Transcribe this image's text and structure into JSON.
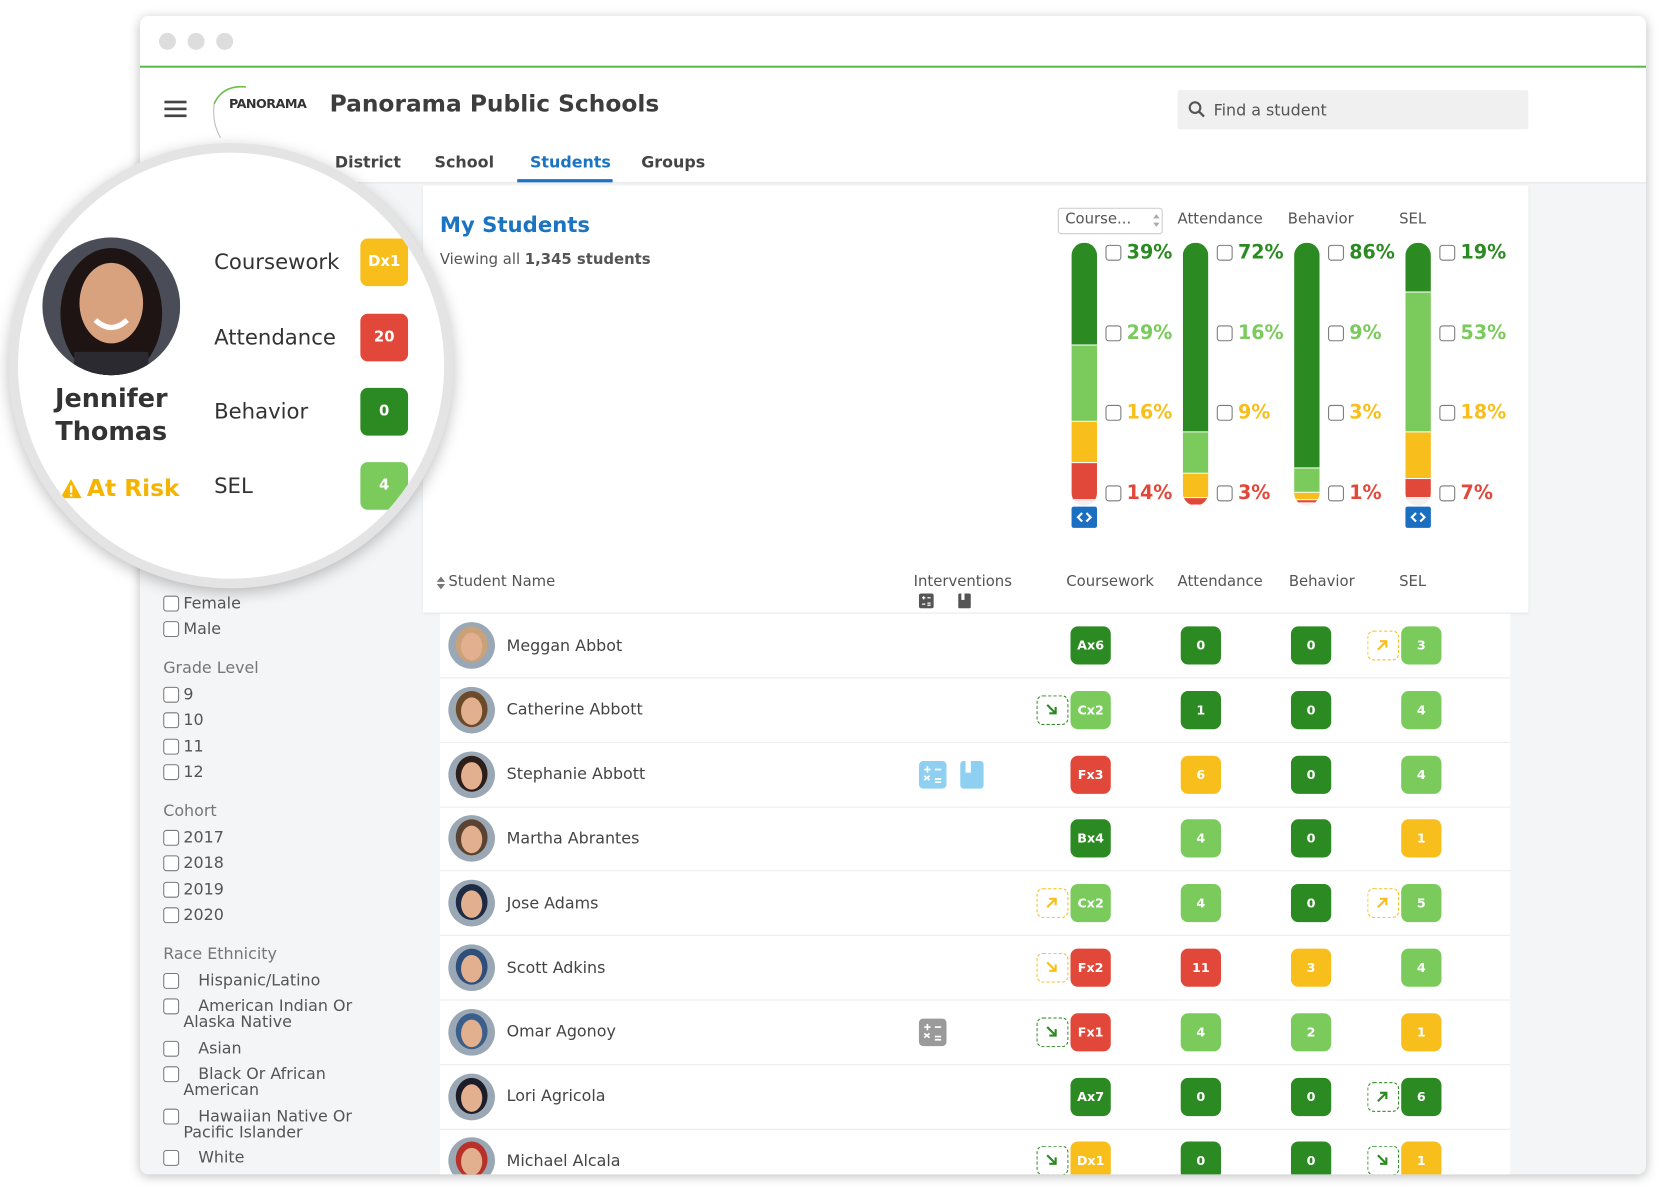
{
  "header": {
    "logo": "PANORAMA",
    "title": "Panorama Public Schools",
    "search_placeholder": "Find a student"
  },
  "tabs": {
    "items": [
      "District",
      "School",
      "Students",
      "Groups"
    ],
    "active": 2
  },
  "palette": {
    "dg": "#2b8a21",
    "lg": "#7acb5c",
    "y": "#f8be1b",
    "r": "#e2483a"
  },
  "spotlight": {
    "first_name": "Jennifer",
    "last_name": "Thomas",
    "status": "At Risk",
    "metrics": [
      {
        "label": "Coursework",
        "score": "Dx1",
        "color": "y"
      },
      {
        "label": "Attendance",
        "score": "20",
        "color": "r"
      },
      {
        "label": "Behavior",
        "score": "0",
        "color": "dg"
      },
      {
        "label": "SEL",
        "score": "4",
        "color": "lg"
      }
    ]
  },
  "overview": {
    "title": "My Students",
    "subtitle": "Viewing all",
    "count": "1,345 students"
  },
  "summary": {
    "segment_colors": [
      "dg",
      "lg",
      "y",
      "r"
    ],
    "columns": [
      {
        "header": "Course...",
        "toggle": true,
        "segments": [
          {
            "value": 39,
            "label": "39%"
          },
          {
            "value": 29,
            "label": "29%"
          },
          {
            "value": 16,
            "label": "16%"
          },
          {
            "value": 14,
            "label": "14%"
          }
        ]
      },
      {
        "header": "Attendance",
        "toggle": false,
        "segments": [
          {
            "value": 72,
            "label": "72%"
          },
          {
            "value": 16,
            "label": "16%"
          },
          {
            "value": 9,
            "label": "9%"
          },
          {
            "value": 3,
            "label": "3%"
          }
        ]
      },
      {
        "header": "Behavior",
        "toggle": false,
        "segments": [
          {
            "value": 86,
            "label": "86%"
          },
          {
            "value": 9,
            "label": "9%"
          },
          {
            "value": 3,
            "label": "3%"
          },
          {
            "value": 1,
            "label": "1%"
          }
        ]
      },
      {
        "header": "SEL",
        "toggle": true,
        "segments": [
          {
            "value": 19,
            "label": "19%"
          },
          {
            "value": 53,
            "label": "53%"
          },
          {
            "value": 18,
            "label": "18%"
          },
          {
            "value": 7,
            "label": "7%"
          }
        ]
      }
    ]
  },
  "filters": [
    {
      "options": [
        "Female",
        "Male"
      ]
    },
    {
      "title": "Grade Level",
      "options": [
        "9",
        "10",
        "11",
        "12"
      ]
    },
    {
      "title": "Cohort",
      "options": [
        "2017",
        "2018",
        "2019",
        "2020"
      ]
    },
    {
      "title": "Race Ethnicity",
      "options": [
        "Hispanic/Latino",
        "American Indian Or Alaska Native",
        "Asian",
        "Black Or African American",
        "Hawaiian Native Or Pacific Islander",
        "White"
      ]
    }
  ],
  "table": {
    "columns": [
      "Student Name",
      "Interventions",
      "Coursework",
      "Attendance",
      "Behavior",
      "SEL"
    ],
    "rows": [
      {
        "name": "Meggan Abbot",
        "avatar": "#c9a27a",
        "interventions": [],
        "scores": [
          {
            "label": "Ax6",
            "color": "dg"
          },
          {
            "label": "0",
            "color": "dg"
          },
          {
            "label": "0",
            "color": "dg"
          },
          {
            "label": "3",
            "color": "lg",
            "trend": "up",
            "trend_color": "y"
          }
        ]
      },
      {
        "name": "Catherine Abbott",
        "avatar": "#6b4a2a",
        "interventions": [],
        "scores": [
          {
            "label": "Cx2",
            "color": "lg",
            "trend": "down",
            "trend_color": "dg"
          },
          {
            "label": "1",
            "color": "dg"
          },
          {
            "label": "0",
            "color": "dg"
          },
          {
            "label": "4",
            "color": "lg"
          }
        ]
      },
      {
        "name": "Stephanie Abbott",
        "avatar": "#2c1f1a",
        "interventions": [
          "math",
          "book"
        ],
        "intervention_color": "#8fd0f2",
        "scores": [
          {
            "label": "Fx3",
            "color": "r"
          },
          {
            "label": "6",
            "color": "y"
          },
          {
            "label": "0",
            "color": "dg"
          },
          {
            "label": "4",
            "color": "lg"
          }
        ]
      },
      {
        "name": "Martha Abrantes",
        "avatar": "#5a4330",
        "interventions": [],
        "scores": [
          {
            "label": "Bx4",
            "color": "dg"
          },
          {
            "label": "4",
            "color": "lg"
          },
          {
            "label": "0",
            "color": "dg"
          },
          {
            "label": "1",
            "color": "y"
          }
        ]
      },
      {
        "name": "Jose Adams",
        "avatar": "#1f2a44",
        "interventions": [],
        "scores": [
          {
            "label": "Cx2",
            "color": "lg",
            "trend": "up",
            "trend_color": "y"
          },
          {
            "label": "4",
            "color": "lg"
          },
          {
            "label": "0",
            "color": "dg"
          },
          {
            "label": "5",
            "color": "lg",
            "trend": "up",
            "trend_color": "y"
          }
        ]
      },
      {
        "name": "Scott Adkins",
        "avatar": "#2f4f7a",
        "interventions": [],
        "scores": [
          {
            "label": "Fx2",
            "color": "r",
            "trend": "down",
            "trend_color": "y"
          },
          {
            "label": "11",
            "color": "r"
          },
          {
            "label": "3",
            "color": "y"
          },
          {
            "label": "4",
            "color": "lg"
          }
        ]
      },
      {
        "name": "Omar Agonoy",
        "avatar": "#3b5f8a",
        "interventions": [
          "math"
        ],
        "intervention_color": "#9a9a9a",
        "scores": [
          {
            "label": "Fx1",
            "color": "r",
            "trend": "down",
            "trend_color": "dg"
          },
          {
            "label": "4",
            "color": "lg"
          },
          {
            "label": "2",
            "color": "lg"
          },
          {
            "label": "1",
            "color": "y"
          }
        ]
      },
      {
        "name": "Lori Agricola",
        "avatar": "#1d1d2a",
        "interventions": [],
        "scores": [
          {
            "label": "Ax7",
            "color": "dg"
          },
          {
            "label": "0",
            "color": "dg"
          },
          {
            "label": "0",
            "color": "dg"
          },
          {
            "label": "6",
            "color": "dg",
            "trend": "up",
            "trend_color": "dg"
          }
        ]
      },
      {
        "name": "Michael Alcala",
        "avatar": "#b8322a",
        "interventions": [],
        "scores": [
          {
            "label": "Dx1",
            "color": "y",
            "trend": "down",
            "trend_color": "dg"
          },
          {
            "label": "0",
            "color": "dg"
          },
          {
            "label": "0",
            "color": "dg"
          },
          {
            "label": "1",
            "color": "y",
            "trend": "down",
            "trend_color": "dg"
          }
        ]
      }
    ]
  }
}
